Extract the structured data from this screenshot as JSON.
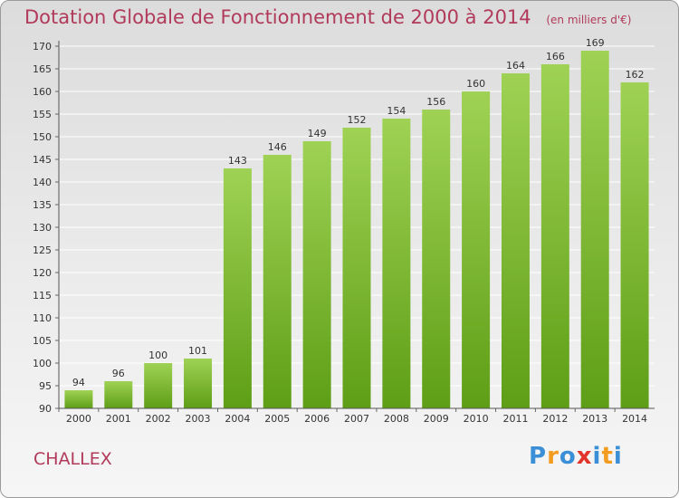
{
  "title": "Dotation Globale de Fonctionnement de 2000 à 2014",
  "unit_note": "(en milliers d'€)",
  "commune": "CHALLEX",
  "logo": {
    "letters": [
      "P",
      "r",
      "o",
      "x",
      "i",
      "t",
      "i"
    ],
    "colors": [
      "#3a8fd6",
      "#f39c1f",
      "#3a8fd6",
      "#e2342b",
      "#3a8fd6",
      "#f39c1f",
      "#3a8fd6"
    ]
  },
  "colors": {
    "bar_top": "#9fd254",
    "bar_bottom": "#5e9e16",
    "title": "#b13a5a",
    "grid": "#ffffff"
  },
  "chart_data": {
    "type": "bar",
    "categories": [
      "2000",
      "2001",
      "2002",
      "2003",
      "2004",
      "2005",
      "2006",
      "2007",
      "2008",
      "2009",
      "2010",
      "2011",
      "2012",
      "2013",
      "2014"
    ],
    "values": [
      94,
      96,
      100,
      101,
      143,
      146,
      149,
      152,
      154,
      156,
      160,
      164,
      166,
      169,
      162
    ],
    "ylim": [
      90,
      170
    ],
    "yticks": [
      90,
      95,
      100,
      105,
      110,
      115,
      120,
      125,
      130,
      135,
      140,
      145,
      150,
      155,
      160,
      165,
      170
    ],
    "grid": true,
    "data_labels": true
  }
}
